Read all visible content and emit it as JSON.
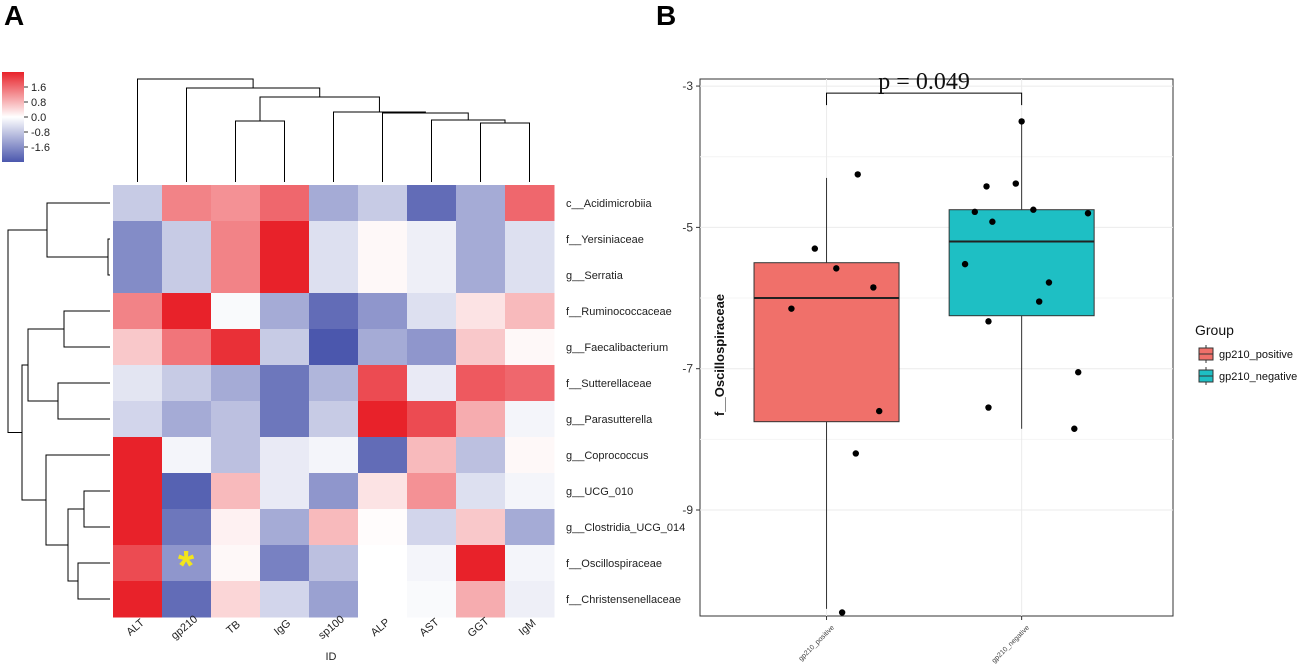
{
  "figure": {
    "panel_a_label": "A",
    "panel_b_label": "B"
  },
  "chart_data": [
    {
      "type": "heatmap",
      "title": "",
      "xlabel": "ID",
      "columns": [
        "ALT",
        "gp210",
        "TB",
        "IgG",
        "sp100",
        "ALP",
        "AST",
        "GGT",
        "IgM"
      ],
      "rows": [
        "c__Acidimicrobiia",
        "f__Yersiniaceae",
        "g__Serratia",
        "f__Ruminococcaceae",
        "g__Faecalibacterium",
        "f__Sutterellaceae",
        "g__Parasutterella",
        "g__Coprococcus",
        "g__UCG_010",
        "g__Clostridia_UCG_014",
        "f__Oscillospiraceae",
        "f__Christensenellaceae"
      ],
      "values": [
        [
          -0.5,
          0.9,
          0.8,
          1.1,
          -0.8,
          -0.5,
          -1.4,
          -0.8,
          1.1
        ],
        [
          -1.1,
          -0.5,
          0.9,
          1.9,
          -0.3,
          0.05,
          -0.15,
          -0.8,
          -0.3
        ],
        [
          -1.1,
          -0.5,
          0.9,
          1.9,
          -0.3,
          0.05,
          -0.15,
          -0.8,
          -0.3
        ],
        [
          0.9,
          1.6,
          -0.05,
          -0.8,
          -1.4,
          -1.0,
          -0.3,
          0.2,
          0.5
        ],
        [
          0.4,
          1.0,
          1.5,
          -0.5,
          -1.6,
          -0.8,
          -1.0,
          0.4,
          0.05
        ],
        [
          -0.25,
          -0.5,
          -0.8,
          -1.3,
          -0.7,
          1.3,
          -0.2,
          1.2,
          1.1
        ],
        [
          -0.4,
          -0.8,
          -0.6,
          -1.3,
          -0.5,
          1.7,
          1.3,
          0.6,
          -0.1
        ],
        [
          1.9,
          -0.1,
          -0.6,
          -0.2,
          -0.1,
          -1.4,
          0.5,
          -0.6,
          0.05
        ],
        [
          1.6,
          -1.5,
          0.5,
          -0.2,
          -1.0,
          0.2,
          0.8,
          -0.3,
          -0.1
        ],
        [
          1.9,
          -1.3,
          0.1,
          -0.8,
          0.5,
          0.02,
          -0.4,
          0.4,
          -0.8
        ],
        [
          1.3,
          -1.0,
          0.05,
          -1.2,
          -0.6,
          0.0,
          -0.1,
          1.8,
          -0.1
        ],
        [
          1.9,
          -1.4,
          0.3,
          -0.4,
          -0.9,
          0.0,
          -0.05,
          0.6,
          -0.15
        ]
      ],
      "annotations": [
        {
          "row": "f__Oscillospiraceae",
          "column": "gp210",
          "text": "*"
        }
      ],
      "color_scale": {
        "min": -1.6,
        "max": 1.6,
        "ticks": [
          "1.6",
          "0.8",
          "0.0",
          "-0.8",
          "-1.6"
        ],
        "low_color": "#4b57ad",
        "mid_color": "#ffffff",
        "high_color": "#e8222a"
      },
      "col_dendrogram_order": [
        "ALT",
        "gp210",
        "TB",
        "IgG",
        "sp100",
        "ALP",
        "AST",
        "GGT",
        "IgM"
      ],
      "row_dendrogram_order": [
        "c__Acidimicrobiia",
        "f__Yersiniaceae",
        "g__Serratia",
        "f__Ruminococcaceae",
        "g__Faecalibacterium",
        "f__Sutterellaceae",
        "g__Parasutterella",
        "g__Coprococcus",
        "g__UCG_010",
        "g__Clostridia_UCG_014",
        "f__Oscillospiraceae",
        "f__Christensenellaceae"
      ]
    },
    {
      "type": "boxplot",
      "title": "",
      "xlabel": "",
      "ylabel": "f__Oscillospiraceae",
      "ylim": [
        -10.5,
        -2.9
      ],
      "yticks": [
        -3,
        -5,
        -7,
        -9
      ],
      "ytick_labels": [
        "-3",
        "-5",
        "-7",
        "-9"
      ],
      "categories": [
        "gp210_positive",
        "gp210_negative"
      ],
      "boxes": [
        {
          "group": "gp210_positive",
          "color": "#f0706a",
          "q1": -7.75,
          "median": -6.0,
          "q3": -5.5,
          "whisker_low": -10.4,
          "whisker_high": -4.3
        },
        {
          "group": "gp210_negative",
          "color": "#1ebfc4",
          "q1": -6.25,
          "median": -5.2,
          "q3": -4.75,
          "whisker_low": -7.85,
          "whisker_high": -3.5
        }
      ],
      "points": [
        {
          "group": "gp210_positive",
          "x": 0.94,
          "y": -5.3
        },
        {
          "group": "gp210_positive",
          "x": 1.16,
          "y": -4.25
        },
        {
          "group": "gp210_positive",
          "x": 1.05,
          "y": -5.58
        },
        {
          "group": "gp210_positive",
          "x": 1.24,
          "y": -5.85
        },
        {
          "group": "gp210_positive",
          "x": 0.82,
          "y": -6.15
        },
        {
          "group": "gp210_positive",
          "x": 1.27,
          "y": -7.6
        },
        {
          "group": "gp210_positive",
          "x": 1.15,
          "y": -8.2
        },
        {
          "group": "gp210_positive",
          "x": 1.08,
          "y": -10.45
        },
        {
          "group": "gp210_negative",
          "x": 2.0,
          "y": -3.5
        },
        {
          "group": "gp210_negative",
          "x": 1.82,
          "y": -4.42
        },
        {
          "group": "gp210_negative",
          "x": 1.97,
          "y": -4.38
        },
        {
          "group": "gp210_negative",
          "x": 1.76,
          "y": -4.78
        },
        {
          "group": "gp210_negative",
          "x": 1.85,
          "y": -4.92
        },
        {
          "group": "gp210_negative",
          "x": 2.06,
          "y": -4.75
        },
        {
          "group": "gp210_negative",
          "x": 2.34,
          "y": -4.8
        },
        {
          "group": "gp210_negative",
          "x": 1.71,
          "y": -5.52
        },
        {
          "group": "gp210_negative",
          "x": 2.14,
          "y": -5.78
        },
        {
          "group": "gp210_negative",
          "x": 2.09,
          "y": -6.05
        },
        {
          "group": "gp210_negative",
          "x": 1.83,
          "y": -6.33
        },
        {
          "group": "gp210_negative",
          "x": 2.29,
          "y": -7.05
        },
        {
          "group": "gp210_negative",
          "x": 1.83,
          "y": -7.55
        },
        {
          "group": "gp210_negative",
          "x": 2.27,
          "y": -7.85
        }
      ],
      "significance": {
        "text": "p = 0.049",
        "y": -3.1
      },
      "legend": {
        "title": "Group",
        "entries": [
          {
            "label": "gp210_positive",
            "color": "#f0706a"
          },
          {
            "label": "gp210_negative",
            "color": "#1ebfc4"
          }
        ]
      }
    }
  ]
}
